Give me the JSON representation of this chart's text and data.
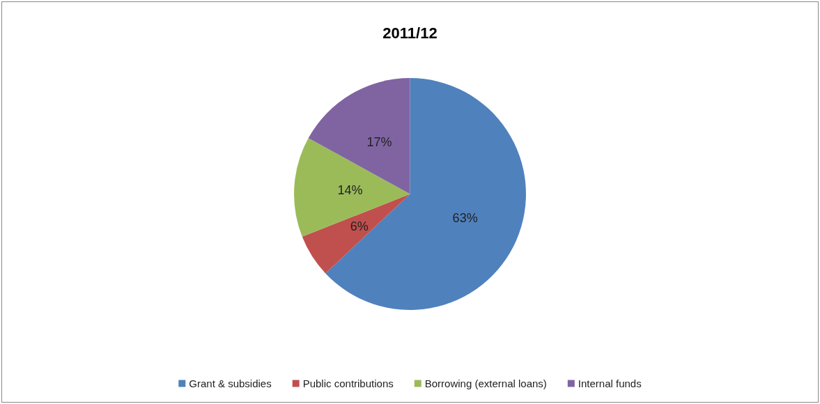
{
  "chart_data": {
    "type": "pie",
    "title": "2011/12",
    "categories": [
      "Grant & subsidies",
      "Public contributions",
      "Borrowing (external loans)",
      "Internal funds"
    ],
    "values": [
      63,
      6,
      14,
      17
    ],
    "value_labels": [
      "63%",
      "6%",
      "14%",
      "17%"
    ],
    "colors": [
      "#4f81bd",
      "#c0504d",
      "#9bbb59",
      "#8064a2"
    ],
    "legend": "bottom"
  }
}
